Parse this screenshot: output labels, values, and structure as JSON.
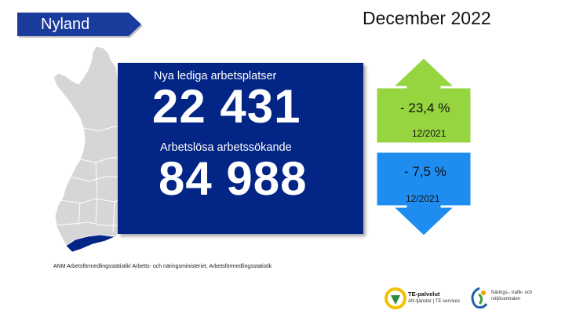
{
  "region": {
    "label": "Nyland"
  },
  "period": "December 2022",
  "stats": {
    "new_jobs": {
      "label": "Nya lediga arbetsplatser",
      "value": "22 431"
    },
    "unemployed": {
      "label": "Arbetslösa arbetssökande",
      "value": "84 988"
    }
  },
  "changes": {
    "new_jobs_change": {
      "value": "- 23,4 %",
      "period": "12/2021",
      "color": "#96d440"
    },
    "unemployed_change": {
      "value": "- 7,5 %",
      "period": "12/2021",
      "color": "#1f8df0"
    }
  },
  "source": "ANM Arbetsförmedlingsstatistik/ Arbetts- och näringsministeriet, Arbetsförmedlingsstatistik",
  "logos": {
    "te": {
      "name": "TE-palvelut",
      "sub": "AN-tjänster | TE services"
    },
    "ely": {
      "line1": "Närings-, trafik- och",
      "line2": "miljöcentralen"
    }
  },
  "colors": {
    "panel": "#032586",
    "banner": "#1a3c9c",
    "map": "#d6d6d6",
    "highlight": "#032586"
  }
}
